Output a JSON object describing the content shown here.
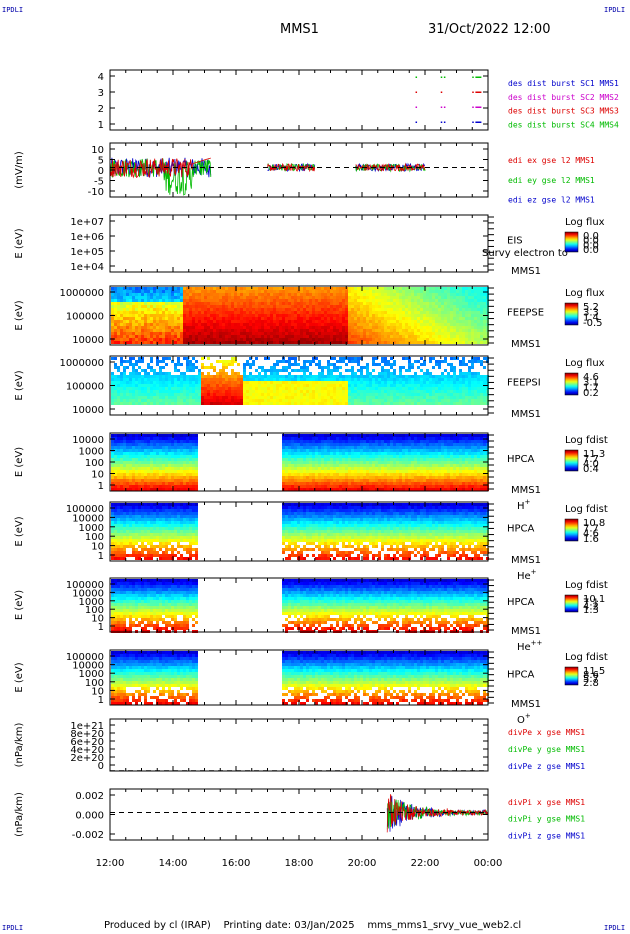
{
  "header": {
    "corner_label": "IPDLI",
    "mission": "MMS1",
    "datetime": "31/Oct/2022 12:00"
  },
  "footer": {
    "produced_by": "Produced by cl (IRAP)",
    "printing_date": "Printing date: 03/Jan/2025",
    "file": "mms_mms1_srvy_vue_web2.cl"
  },
  "colors": {
    "red": "#dd0000",
    "green": "#00bb00",
    "blue": "#0000cc",
    "magenta": "#cc00cc",
    "label_blue": "#0000aa"
  },
  "chart_data": {
    "type": "line",
    "x_ticks": [
      "12:00",
      "14:00",
      "16:00",
      "18:00",
      "20:00",
      "22:00",
      "00:00"
    ],
    "x_range_hours": [
      12,
      24
    ],
    "panels": [
      {
        "id": "burst",
        "type": "scatter",
        "ylim": [
          0.5,
          4.5
        ],
        "y_ticks": [
          "4",
          "3",
          "2",
          "1"
        ],
        "legend": [
          {
            "text": "des dist burst SC1 MMS1",
            "color": "blue"
          },
          {
            "text": "des dist burst SC2 MMS2",
            "color": "magenta"
          },
          {
            "text": "des dist burst SC3 MMS3",
            "color": "red"
          },
          {
            "text": "des dist burst SC4 MMS4",
            "color": "green"
          }
        ],
        "series": [
          {
            "name": "SC4",
            "color": "green",
            "y": 4,
            "x": [
              21.7,
              22.5,
              22.6,
              23.5,
              23.6
            ]
          },
          {
            "name": "SC3",
            "color": "red",
            "y": 3,
            "x": [
              21.7,
              22.5,
              23.5,
              23.6
            ]
          },
          {
            "name": "SC2",
            "color": "magenta",
            "y": 2,
            "x": [
              21.7,
              22.5,
              22.6,
              23.5,
              23.6
            ]
          },
          {
            "name": "SC1",
            "color": "blue",
            "y": 1,
            "x": [
              21.7,
              22.5,
              22.6,
              23.5,
              23.6
            ]
          }
        ]
      },
      {
        "id": "edi",
        "type": "line",
        "ylabel": "(mV/m)",
        "ylim": [
          -12,
          10
        ],
        "y_ticks": [
          "10",
          "5",
          "0",
          "-5",
          "-10"
        ],
        "zero_line": true,
        "legend": [
          {
            "text": "edi ex gse l2 MMS1",
            "color": "red"
          },
          {
            "text": "edi ey gse l2 MMS1",
            "color": "green"
          },
          {
            "text": "edi ez gse l2 MMS1",
            "color": "blue"
          }
        ],
        "segments": [
          [
            12.0,
            15.2
          ],
          [
            17.0,
            18.5
          ],
          [
            19.8,
            22.0
          ]
        ]
      },
      {
        "id": "eis",
        "type": "heatmap",
        "ylabel": "E (eV)",
        "y_ticks": [
          "1e+07",
          "1e+06",
          "1e+05",
          "1e+04"
        ],
        "side_labels": [
          "EIS",
          "MMS1"
        ],
        "overlay_label": "Survy electron to",
        "cb_title": "Log flux",
        "cb_ticks": [
          "0.0",
          "0.0",
          "0.0",
          "0.0"
        ]
      },
      {
        "id": "feepse",
        "type": "heatmap",
        "ylabel": "E (eV)",
        "y_ticks": [
          "1000000",
          "100000",
          "10000"
        ],
        "side_labels": [
          "FEEPSE",
          "MMS1"
        ],
        "cb_title": "Log flux",
        "cb_ticks": [
          "5.2",
          "3.3",
          "1.4",
          "-0.5"
        ]
      },
      {
        "id": "feepsi",
        "type": "heatmap",
        "ylabel": "E (eV)",
        "y_ticks": [
          "1000000",
          "100000",
          "10000"
        ],
        "side_labels": [
          "FEEPSI",
          "MMS1"
        ],
        "cb_title": "Log flux",
        "cb_ticks": [
          "4.6",
          "3.1",
          "1.7",
          "0.2"
        ]
      },
      {
        "id": "hpca_h",
        "type": "heatmap",
        "ylabel": "E (eV)",
        "y_ticks": [
          "10000",
          "1000",
          "100",
          "10",
          "1"
        ],
        "side_labels": [
          "HPCA",
          "MMS1"
        ],
        "species": "H",
        "species_sup": "+",
        "gap_hours": [
          14.7,
          17.4
        ],
        "cb_title": "Log fdist",
        "cb_ticks": [
          "11.3",
          "7.7",
          "4.0",
          "0.4"
        ]
      },
      {
        "id": "hpca_he",
        "type": "heatmap",
        "ylabel": "E (eV)",
        "y_ticks": [
          "100000",
          "10000",
          "1000",
          "100",
          "10",
          "1"
        ],
        "side_labels": [
          "HPCA",
          "MMS1"
        ],
        "species": "He",
        "species_sup": "+",
        "gap_hours": [
          14.7,
          17.4
        ],
        "cb_title": "Log fdist",
        "cb_ticks": [
          "10.8",
          "7.7",
          "4.6",
          "1.6"
        ]
      },
      {
        "id": "hpca_he2",
        "type": "heatmap",
        "ylabel": "E (eV)",
        "y_ticks": [
          "100000",
          "10000",
          "1000",
          "100",
          "10",
          "1"
        ],
        "side_labels": [
          "HPCA",
          "MMS1"
        ],
        "species": "He",
        "species_sup": "++",
        "gap_hours": [
          14.7,
          17.4
        ],
        "cb_title": "Log fdist",
        "cb_ticks": [
          "10.1",
          "7.1",
          "4.2",
          "1.3"
        ]
      },
      {
        "id": "hpca_o",
        "type": "heatmap",
        "ylabel": "E (eV)",
        "y_ticks": [
          "100000",
          "10000",
          "1000",
          "100",
          "10",
          "1"
        ],
        "side_labels": [
          "HPCA",
          "MMS1"
        ],
        "species": "O",
        "species_sup": "+",
        "gap_hours": [
          14.7,
          17.4
        ],
        "cb_title": "Log fdist",
        "cb_ticks": [
          "11.5",
          "8.6",
          "5.7",
          "2.8"
        ]
      },
      {
        "id": "divpe",
        "type": "line",
        "ylabel": "(nPa/km)",
        "ylim": [
          -5e+18,
          1.05e+21
        ],
        "y_ticks": [
          "1e+21",
          "8e+20",
          "6e+20",
          "4e+20",
          "2e+20",
          "0"
        ],
        "zero_line": true,
        "legend": [
          {
            "text": "divPe x gse MMS1",
            "color": "red"
          },
          {
            "text": "divPe y gse MMS1",
            "color": "green"
          },
          {
            "text": "divPe z gse MMS1",
            "color": "blue"
          }
        ]
      },
      {
        "id": "divpi",
        "type": "line",
        "ylabel": "(nPa/km)",
        "ylim": [
          -0.0035,
          0.003
        ],
        "y_ticks": [
          "0.002",
          "0.000",
          "-0.002"
        ],
        "zero_line": true,
        "legend": [
          {
            "text": "divPi x gse MMS1",
            "color": "red"
          },
          {
            "text": "divPi y gse MMS1",
            "color": "green"
          },
          {
            "text": "divPi z gse MMS1",
            "color": "blue"
          }
        ],
        "segments": [
          [
            20.8,
            24.0
          ]
        ]
      }
    ]
  }
}
